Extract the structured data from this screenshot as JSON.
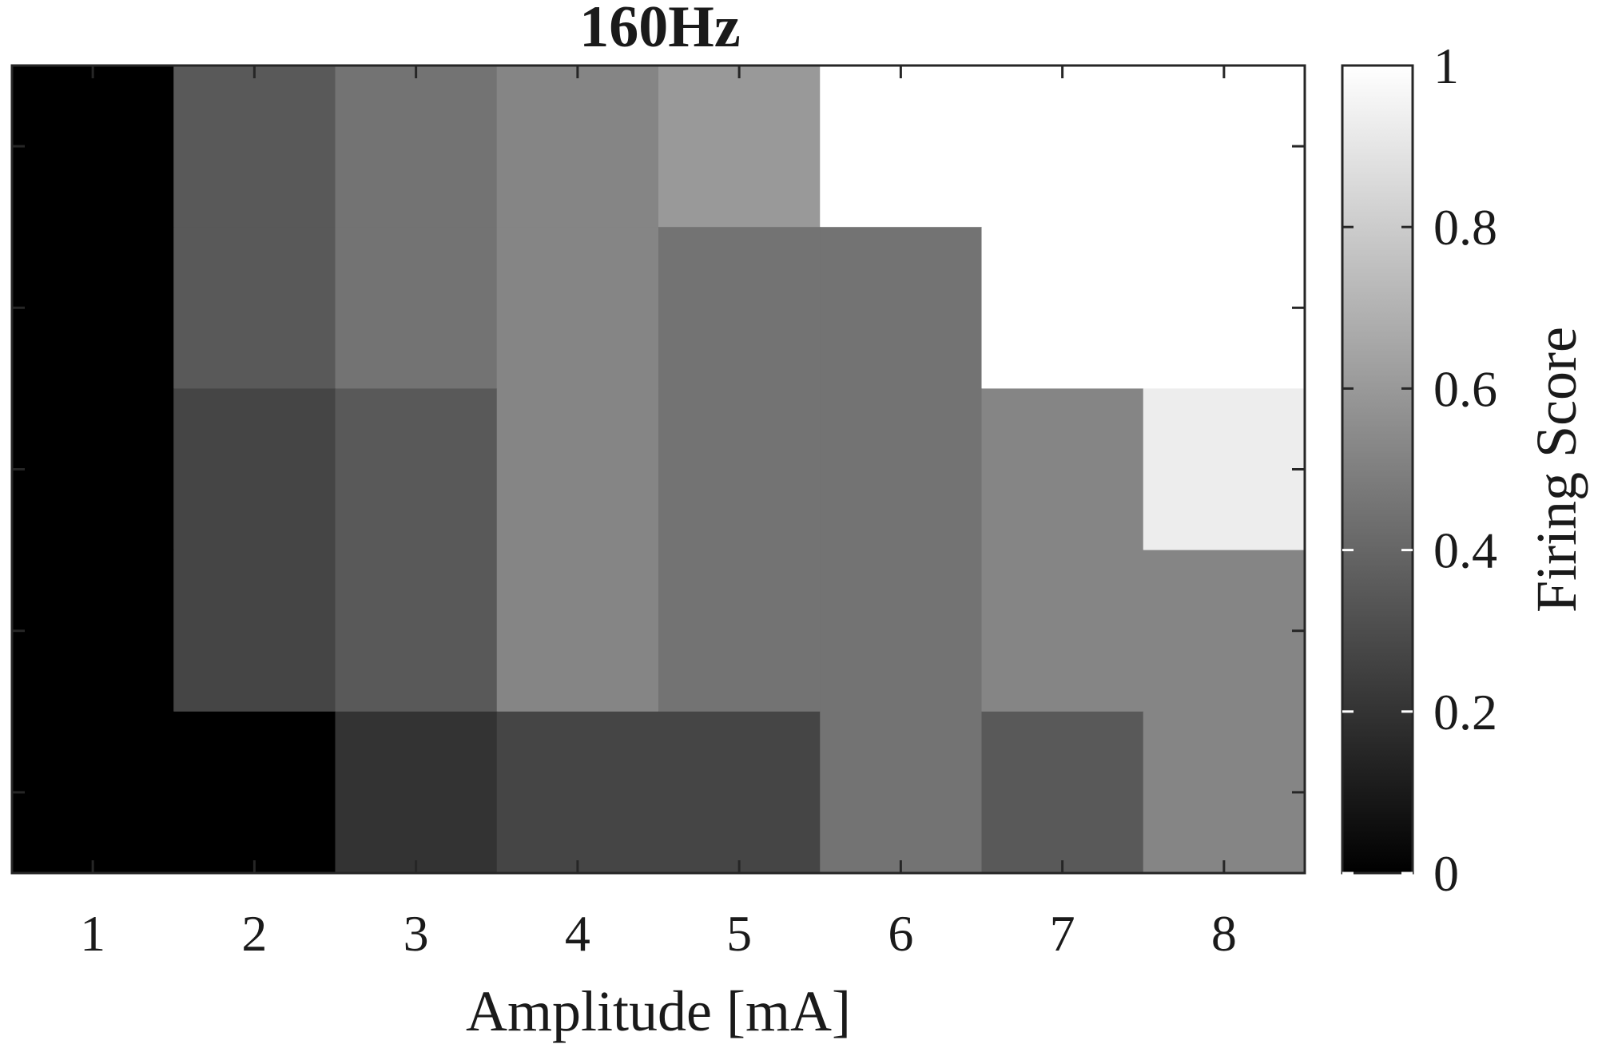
{
  "chart_data": {
    "type": "heatmap",
    "title": "160Hz",
    "xlabel": "Amplitude [mA]",
    "ylabel": "",
    "x_ticks": [
      "1",
      "2",
      "3",
      "4",
      "5",
      "6",
      "7",
      "8"
    ],
    "rows": 5,
    "values": [
      [
        0.0,
        0.35,
        0.45,
        0.52,
        0.6,
        1.0,
        1.0,
        1.0
      ],
      [
        0.0,
        0.35,
        0.45,
        0.52,
        0.45,
        0.45,
        1.0,
        1.0
      ],
      [
        0.0,
        0.27,
        0.35,
        0.52,
        0.45,
        0.45,
        0.52,
        0.93
      ],
      [
        0.0,
        0.27,
        0.35,
        0.52,
        0.45,
        0.45,
        0.52,
        0.52
      ],
      [
        0.0,
        0.0,
        0.2,
        0.27,
        0.27,
        0.45,
        0.35,
        0.52
      ]
    ],
    "colormap": "gray",
    "clim": [
      0,
      1
    ],
    "colorbar": {
      "label": "Firing Score",
      "ticks": [
        "0",
        "0.2",
        "0.4",
        "0.6",
        "0.8",
        "1"
      ],
      "tick_values": [
        0,
        0.2,
        0.4,
        0.6,
        0.8,
        1
      ]
    },
    "grid": false
  }
}
